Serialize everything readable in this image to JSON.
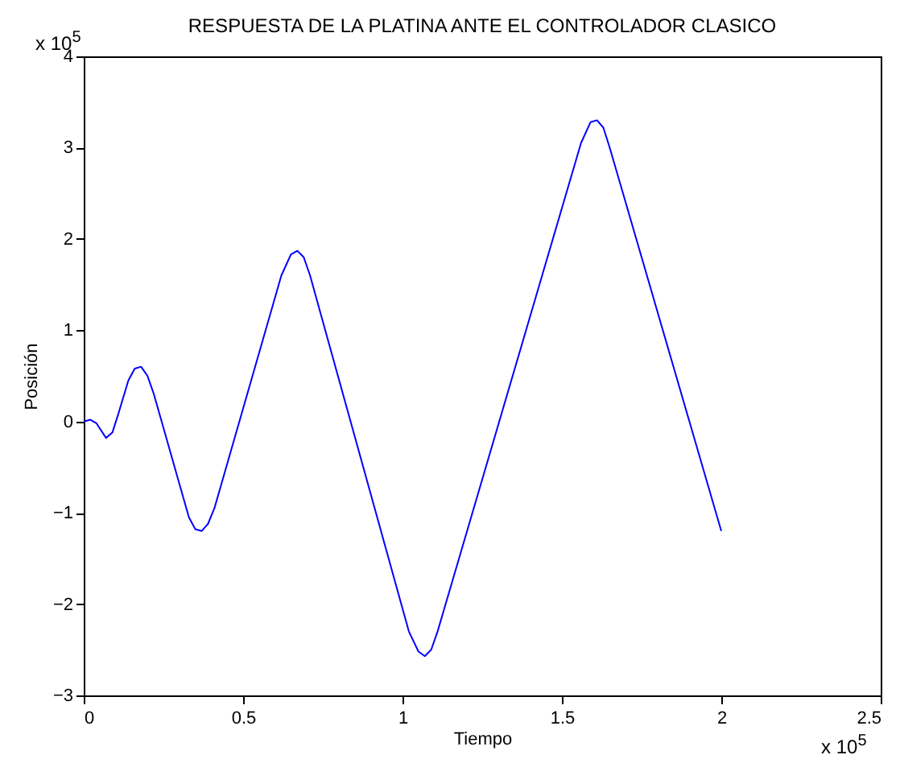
{
  "chart_data": {
    "type": "line",
    "title": "RESPUESTA DE LA PLATINA ANTE EL CONTROLADOR CLASICO",
    "xlabel": "Tiempo",
    "ylabel": "Posición",
    "annotations": [
      "x 10$^{5}$",
      "x 10$^{5}$"
    ],
    "x": [
      0,
      0.02,
      0.04,
      0.07,
      0.09,
      0.11,
      0.14,
      0.16,
      0.18,
      0.2,
      0.22,
      0.33,
      0.35,
      0.37,
      0.39,
      0.41,
      0.62,
      0.65,
      0.67,
      0.69,
      0.71,
      1.02,
      1.05,
      1.07,
      1.09,
      1.11,
      1.56,
      1.59,
      1.61,
      1.63,
      1.65,
      2.0
    ],
    "series": [
      {
        "color": "#0000ff",
        "values": [
          0,
          0.02,
          -0.02,
          -0.18,
          -0.12,
          0.1,
          0.45,
          0.58,
          0.6,
          0.5,
          0.3,
          -1.05,
          -1.18,
          -1.2,
          -1.12,
          -0.95,
          1.6,
          1.83,
          1.87,
          1.8,
          1.6,
          -2.3,
          -2.52,
          -2.57,
          -2.5,
          -2.3,
          3.05,
          3.28,
          3.3,
          3.22,
          3.0,
          -1.2
        ]
      }
    ],
    "xlim": [
      0,
      2.5
    ],
    "xticks": [
      0,
      0.5,
      1,
      1.5,
      2,
      2.5
    ],
    "ylim": [
      -3,
      4
    ],
    "yticks": [
      -3,
      -2,
      -1,
      0,
      1,
      2,
      3,
      4
    ],
    "grid": false,
    "marker": "none",
    "line_style": "solid"
  }
}
